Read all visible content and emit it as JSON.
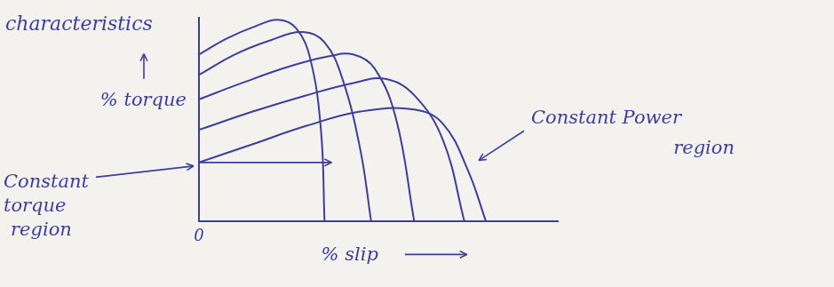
{
  "chart_data": {
    "type": "line",
    "title": "characteristics",
    "x_label": "% slip",
    "y_label": "% torque",
    "annotations": [
      "Constant torque region",
      "Constant Power region"
    ],
    "color": "#3b3f9a",
    "xlim": [
      0,
      100
    ],
    "ylim": [
      0,
      100
    ],
    "xticks": [
      0
    ],
    "yticks": [],
    "tick_labels": "x",
    "grid": false,
    "series": [
      {
        "x": [
          0,
          8,
          16,
          22,
          27,
          31,
          34,
          35
        ],
        "values": [
          82,
          90,
          96,
          99,
          95,
          80,
          45,
          0
        ]
      },
      {
        "x": [
          0,
          10,
          20,
          29,
          35,
          40,
          45,
          48
        ],
        "values": [
          72,
          82,
          89,
          93,
          88,
          70,
          35,
          0
        ]
      },
      {
        "x": [
          0,
          12,
          25,
          36,
          43,
          49,
          55,
          60
        ],
        "values": [
          60,
          68,
          76,
          81,
          82,
          75,
          50,
          0
        ]
      },
      {
        "x": [
          0,
          15,
          30,
          43,
          52,
          60,
          68,
          74
        ],
        "values": [
          45,
          54,
          62,
          68,
          70,
          62,
          40,
          0
        ]
      },
      {
        "x": [
          0,
          15,
          30,
          45,
          60,
          68,
          75,
          80
        ],
        "values": [
          29,
          38,
          47,
          54,
          55,
          48,
          25,
          0
        ]
      }
    ]
  }
}
